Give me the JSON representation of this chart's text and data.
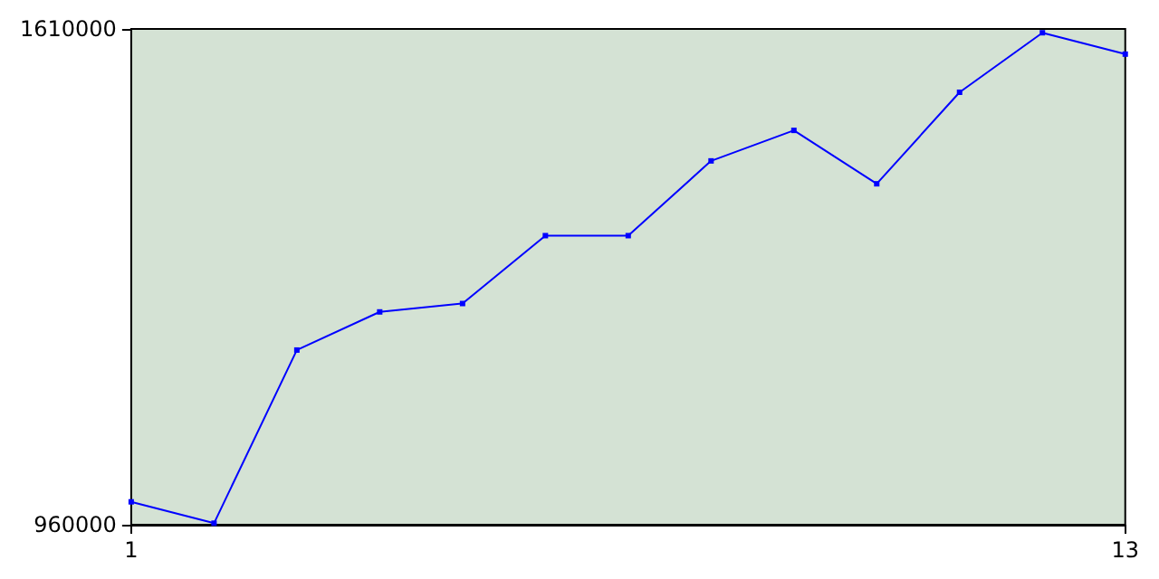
{
  "chart_data": {
    "type": "line",
    "x": [
      1,
      2,
      3,
      4,
      5,
      6,
      7,
      8,
      9,
      10,
      11,
      12,
      13
    ],
    "series": [
      {
        "color": "#0000ff",
        "values": [
          990000,
          962000,
          1189000,
          1239000,
          1250000,
          1339000,
          1339000,
          1437000,
          1477000,
          1407000,
          1527000,
          1605000,
          1577000
        ]
      }
    ],
    "xlim": [
      1,
      13
    ],
    "xticks": [
      1,
      13
    ],
    "ylim": [
      960000,
      1610000
    ],
    "yticks": [
      960000,
      1610000
    ],
    "grid": false,
    "marker": "square",
    "line_style": "solid"
  }
}
